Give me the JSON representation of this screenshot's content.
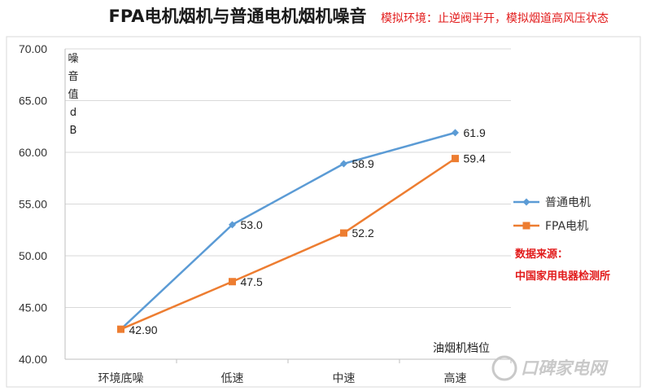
{
  "chart_data": {
    "type": "line",
    "title": "FPA电机烟机与普通电机烟机噪音",
    "subtitle": "模拟环境：止逆阀半开，模拟烟道高风压状态",
    "ylabel": [
      "噪",
      "音",
      "值",
      "d",
      "B"
    ],
    "xlabel": "油烟机档位",
    "categories": [
      "环境底噪",
      "低速",
      "中速",
      "高速"
    ],
    "ylim": [
      40,
      70
    ],
    "yticks": [
      "40.00",
      "45.00",
      "50.00",
      "55.00",
      "60.00",
      "65.00",
      "70.00"
    ],
    "grid": true,
    "legend_position": "right",
    "series": [
      {
        "name": "普通电机",
        "color": "#5b9bd5",
        "marker": "diamond",
        "values": [
          42.9,
          53.0,
          58.9,
          61.9
        ],
        "labels": [
          "",
          "53.0",
          "58.9",
          "61.9"
        ]
      },
      {
        "name": "FPA电机",
        "color": "#ed7d31",
        "marker": "square",
        "values": [
          42.9,
          47.5,
          52.2,
          59.4
        ],
        "labels": [
          "42.90",
          "47.5",
          "52.2",
          "59.4"
        ]
      }
    ]
  },
  "source_note": [
    "数据来源：",
    "中国家用电器检测所"
  ],
  "watermark": "口碑家电网"
}
